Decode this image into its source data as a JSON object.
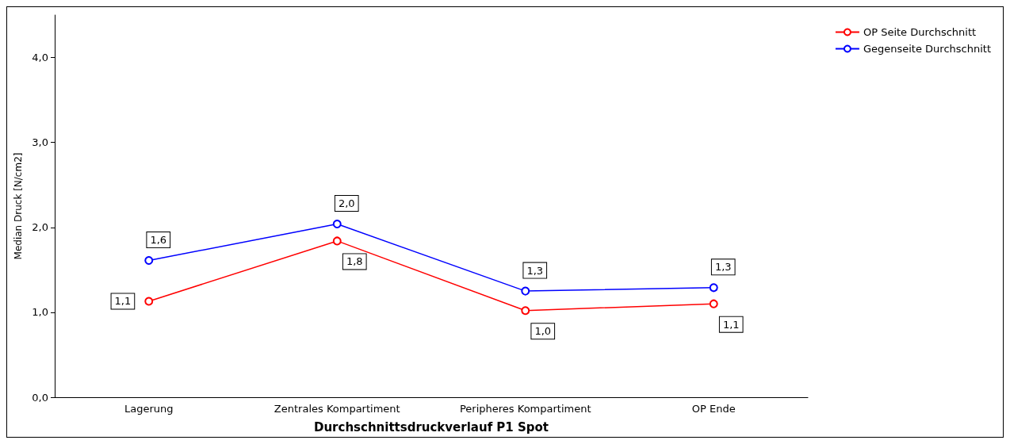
{
  "chart_data": {
    "type": "line",
    "xlabel": "Durchschnittsdruckverlauf P1 Spot",
    "ylabel": "Median Druck [N/cm2]",
    "categories": [
      "Lagerung",
      "Zentrales Kompartiment",
      "Peripheres Kompartiment",
      "OP Ende"
    ],
    "series": [
      {
        "name": "OP Seite Durchschnitt",
        "color": "#ff0000",
        "values": [
          1.13,
          1.84,
          1.02,
          1.1
        ],
        "value_labels": [
          "1,1",
          "1,8",
          "1,0",
          "1,1"
        ]
      },
      {
        "name": "Gegenseite Durchschnitt",
        "color": "#0000ff",
        "values": [
          1.61,
          2.04,
          1.25,
          1.29
        ],
        "value_labels": [
          "1,6",
          "2,0",
          "1,3",
          "1,3"
        ]
      }
    ],
    "ylim": [
      0,
      4.5
    ],
    "yticks": [
      {
        "value": 0,
        "label": "0,0"
      },
      {
        "value": 1,
        "label": "1,0"
      },
      {
        "value": 2,
        "label": "2,0"
      },
      {
        "value": 3,
        "label": "3,0"
      },
      {
        "value": 4,
        "label": "4,0"
      }
    ],
    "grid": false,
    "legend": "top right",
    "marker": "circle",
    "line_style": "solid"
  }
}
